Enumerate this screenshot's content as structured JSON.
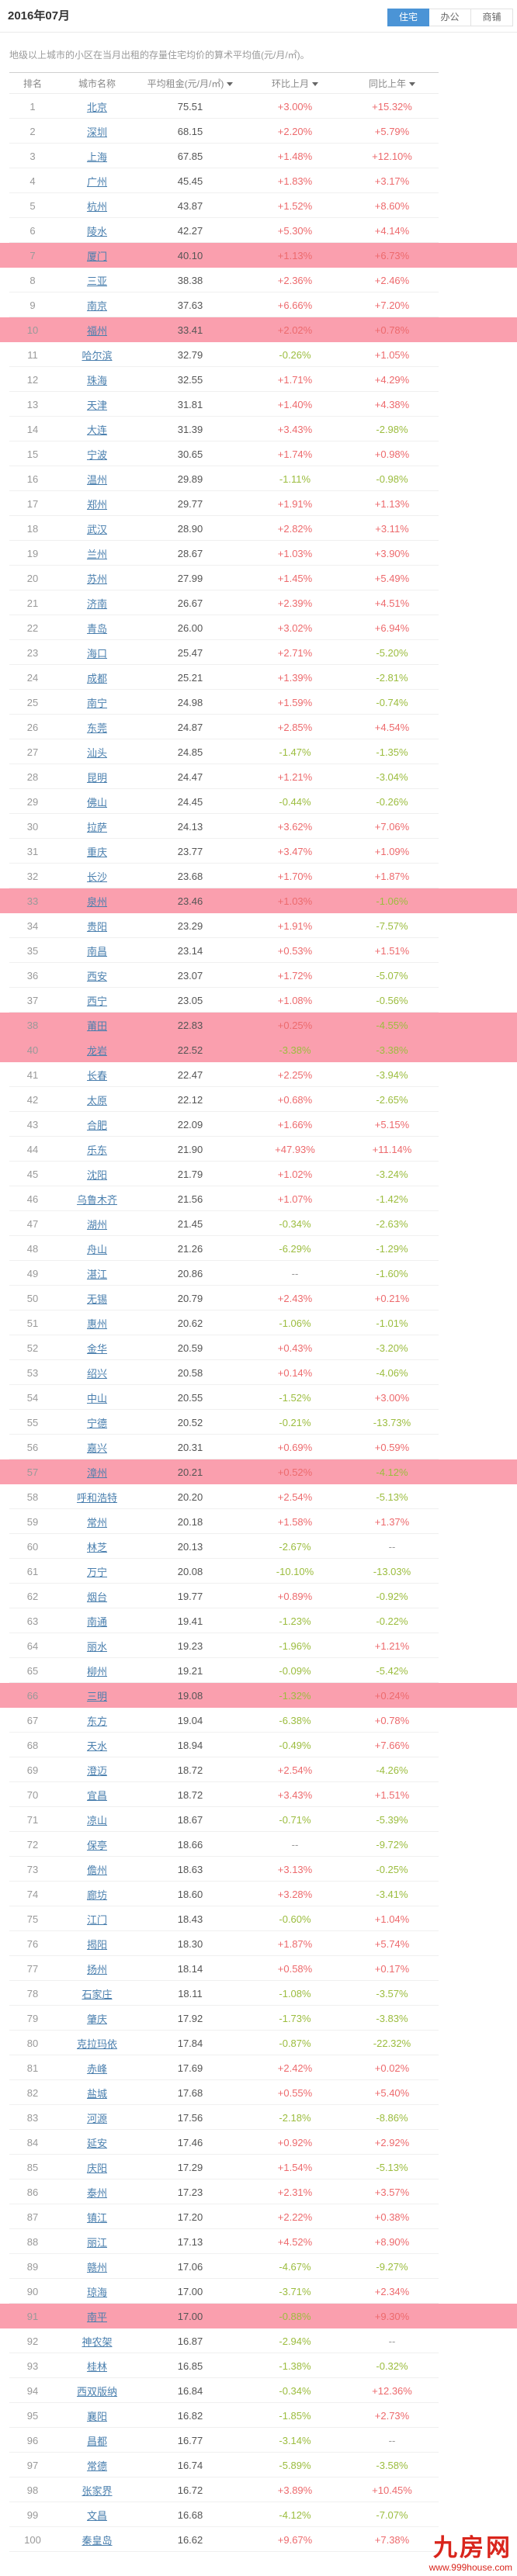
{
  "page": {
    "title": "2016年07月",
    "tabs": [
      {
        "label": "住宅",
        "active": true
      },
      {
        "label": "办公",
        "active": false
      },
      {
        "label": "商铺",
        "active": false
      }
    ],
    "description": "地级以上城市的小区在当月出租的存量住宅均价的算术平均值(元/月/㎡)。",
    "watermark": {
      "logo": "九房网",
      "url": "www.999house.com"
    }
  },
  "colors": {
    "tab_active_bg": "#4b94d6",
    "highlight_row_bg": "#fa9fae",
    "positive_text": "#ed6a6d",
    "negative_text": "#9cbd3f",
    "city_link": "#4a7fae",
    "logo_red": "#d9251c"
  },
  "table": {
    "headers": [
      {
        "label": "排名",
        "sortable": false
      },
      {
        "label": "城市名称",
        "sortable": false
      },
      {
        "label": "平均租金(元/月/㎡)",
        "sortable": true
      },
      {
        "label": "环比上月",
        "sortable": true
      },
      {
        "label": "同比上年",
        "sortable": true
      }
    ],
    "rows": [
      {
        "rank": "1",
        "city": "北京",
        "rent": "75.51",
        "mom": "+3.00%",
        "yoy": "+15.32%"
      },
      {
        "rank": "2",
        "city": "深圳",
        "rent": "68.15",
        "mom": "+2.20%",
        "yoy": "+5.79%"
      },
      {
        "rank": "3",
        "city": "上海",
        "rent": "67.85",
        "mom": "+1.48%",
        "yoy": "+12.10%"
      },
      {
        "rank": "4",
        "city": "广州",
        "rent": "45.45",
        "mom": "+1.83%",
        "yoy": "+3.17%"
      },
      {
        "rank": "5",
        "city": "杭州",
        "rent": "43.87",
        "mom": "+1.52%",
        "yoy": "+8.60%"
      },
      {
        "rank": "6",
        "city": "陵水",
        "rent": "42.27",
        "mom": "+5.30%",
        "yoy": "+4.14%"
      },
      {
        "rank": "7",
        "city": "厦门",
        "rent": "40.10",
        "mom": "+1.13%",
        "yoy": "+6.73%",
        "hl": true
      },
      {
        "rank": "8",
        "city": "三亚",
        "rent": "38.38",
        "mom": "+2.36%",
        "yoy": "+2.46%"
      },
      {
        "rank": "9",
        "city": "南京",
        "rent": "37.63",
        "mom": "+6.66%",
        "yoy": "+7.20%"
      },
      {
        "rank": "10",
        "city": "福州",
        "rent": "33.41",
        "mom": "+2.02%",
        "yoy": "+0.78%",
        "hl": true
      },
      {
        "rank": "11",
        "city": "哈尔滨",
        "rent": "32.79",
        "mom": "-0.26%",
        "yoy": "+1.05%"
      },
      {
        "rank": "12",
        "city": "珠海",
        "rent": "32.55",
        "mom": "+1.71%",
        "yoy": "+4.29%"
      },
      {
        "rank": "13",
        "city": "天津",
        "rent": "31.81",
        "mom": "+1.40%",
        "yoy": "+4.38%"
      },
      {
        "rank": "14",
        "city": "大连",
        "rent": "31.39",
        "mom": "+3.43%",
        "yoy": "-2.98%"
      },
      {
        "rank": "15",
        "city": "宁波",
        "rent": "30.65",
        "mom": "+1.74%",
        "yoy": "+0.98%"
      },
      {
        "rank": "16",
        "city": "温州",
        "rent": "29.89",
        "mom": "-1.11%",
        "yoy": "-0.98%"
      },
      {
        "rank": "17",
        "city": "郑州",
        "rent": "29.77",
        "mom": "+1.91%",
        "yoy": "+1.13%"
      },
      {
        "rank": "18",
        "city": "武汉",
        "rent": "28.90",
        "mom": "+2.82%",
        "yoy": "+3.11%"
      },
      {
        "rank": "19",
        "city": "兰州",
        "rent": "28.67",
        "mom": "+1.03%",
        "yoy": "+3.90%"
      },
      {
        "rank": "20",
        "city": "苏州",
        "rent": "27.99",
        "mom": "+1.45%",
        "yoy": "+5.49%"
      },
      {
        "rank": "21",
        "city": "济南",
        "rent": "26.67",
        "mom": "+2.39%",
        "yoy": "+4.51%"
      },
      {
        "rank": "22",
        "city": "青岛",
        "rent": "26.00",
        "mom": "+3.02%",
        "yoy": "+6.94%"
      },
      {
        "rank": "23",
        "city": "海口",
        "rent": "25.47",
        "mom": "+2.71%",
        "yoy": "-5.20%"
      },
      {
        "rank": "24",
        "city": "成都",
        "rent": "25.21",
        "mom": "+1.39%",
        "yoy": "-2.81%"
      },
      {
        "rank": "25",
        "city": "南宁",
        "rent": "24.98",
        "mom": "+1.59%",
        "yoy": "-0.74%"
      },
      {
        "rank": "26",
        "city": "东莞",
        "rent": "24.87",
        "mom": "+2.85%",
        "yoy": "+4.54%"
      },
      {
        "rank": "27",
        "city": "汕头",
        "rent": "24.85",
        "mom": "-1.47%",
        "yoy": "-1.35%"
      },
      {
        "rank": "28",
        "city": "昆明",
        "rent": "24.47",
        "mom": "+1.21%",
        "yoy": "-3.04%"
      },
      {
        "rank": "29",
        "city": "佛山",
        "rent": "24.45",
        "mom": "-0.44%",
        "yoy": "-0.26%"
      },
      {
        "rank": "30",
        "city": "拉萨",
        "rent": "24.13",
        "mom": "+3.62%",
        "yoy": "+7.06%"
      },
      {
        "rank": "31",
        "city": "重庆",
        "rent": "23.77",
        "mom": "+3.47%",
        "yoy": "+1.09%"
      },
      {
        "rank": "32",
        "city": "长沙",
        "rent": "23.68",
        "mom": "+1.70%",
        "yoy": "+1.87%"
      },
      {
        "rank": "33",
        "city": "泉州",
        "rent": "23.46",
        "mom": "+1.03%",
        "yoy": "-1.06%",
        "hl": true
      },
      {
        "rank": "34",
        "city": "贵阳",
        "rent": "23.29",
        "mom": "+1.91%",
        "yoy": "-7.57%"
      },
      {
        "rank": "35",
        "city": "南昌",
        "rent": "23.14",
        "mom": "+0.53%",
        "yoy": "+1.51%"
      },
      {
        "rank": "36",
        "city": "西安",
        "rent": "23.07",
        "mom": "+1.72%",
        "yoy": "-5.07%"
      },
      {
        "rank": "37",
        "city": "西宁",
        "rent": "23.05",
        "mom": "+1.08%",
        "yoy": "-0.56%"
      },
      {
        "rank": "38",
        "city": "莆田",
        "rent": "22.83",
        "mom": "+0.25%",
        "yoy": "-4.55%",
        "hl": true
      },
      {
        "rank": "40",
        "city": "龙岩",
        "rent": "22.52",
        "mom": "-3.38%",
        "yoy": "-3.38%",
        "hl": true
      },
      {
        "rank": "41",
        "city": "长春",
        "rent": "22.47",
        "mom": "+2.25%",
        "yoy": "-3.94%"
      },
      {
        "rank": "42",
        "city": "太原",
        "rent": "22.12",
        "mom": "+0.68%",
        "yoy": "-2.65%"
      },
      {
        "rank": "43",
        "city": "合肥",
        "rent": "22.09",
        "mom": "+1.66%",
        "yoy": "+5.15%"
      },
      {
        "rank": "44",
        "city": "乐东",
        "rent": "21.90",
        "mom": "+47.93%",
        "yoy": "+11.14%"
      },
      {
        "rank": "45",
        "city": "沈阳",
        "rent": "21.79",
        "mom": "+1.02%",
        "yoy": "-3.24%"
      },
      {
        "rank": "46",
        "city": "乌鲁木齐",
        "rent": "21.56",
        "mom": "+1.07%",
        "yoy": "-1.42%"
      },
      {
        "rank": "47",
        "city": "湖州",
        "rent": "21.45",
        "mom": "-0.34%",
        "yoy": "-2.63%"
      },
      {
        "rank": "48",
        "city": "舟山",
        "rent": "21.26",
        "mom": "-6.29%",
        "yoy": "-1.29%"
      },
      {
        "rank": "49",
        "city": "湛江",
        "rent": "20.86",
        "mom": "--",
        "yoy": "-1.60%"
      },
      {
        "rank": "50",
        "city": "无锡",
        "rent": "20.79",
        "mom": "+2.43%",
        "yoy": "+0.21%"
      },
      {
        "rank": "51",
        "city": "惠州",
        "rent": "20.62",
        "mom": "-1.06%",
        "yoy": "-1.01%"
      },
      {
        "rank": "52",
        "city": "金华",
        "rent": "20.59",
        "mom": "+0.43%",
        "yoy": "-3.20%"
      },
      {
        "rank": "53",
        "city": "绍兴",
        "rent": "20.58",
        "mom": "+0.14%",
        "yoy": "-4.06%"
      },
      {
        "rank": "54",
        "city": "中山",
        "rent": "20.55",
        "mom": "-1.52%",
        "yoy": "+3.00%"
      },
      {
        "rank": "55",
        "city": "宁德",
        "rent": "20.52",
        "mom": "-0.21%",
        "yoy": "-13.73%"
      },
      {
        "rank": "56",
        "city": "嘉兴",
        "rent": "20.31",
        "mom": "+0.69%",
        "yoy": "+0.59%"
      },
      {
        "rank": "57",
        "city": "漳州",
        "rent": "20.21",
        "mom": "+0.52%",
        "yoy": "-4.12%",
        "hl": true
      },
      {
        "rank": "58",
        "city": "呼和浩特",
        "rent": "20.20",
        "mom": "+2.54%",
        "yoy": "-5.13%"
      },
      {
        "rank": "59",
        "city": "常州",
        "rent": "20.18",
        "mom": "+1.58%",
        "yoy": "+1.37%"
      },
      {
        "rank": "60",
        "city": "林芝",
        "rent": "20.13",
        "mom": "-2.67%",
        "yoy": "--"
      },
      {
        "rank": "61",
        "city": "万宁",
        "rent": "20.08",
        "mom": "-10.10%",
        "yoy": "-13.03%"
      },
      {
        "rank": "62",
        "city": "烟台",
        "rent": "19.77",
        "mom": "+0.89%",
        "yoy": "-0.92%"
      },
      {
        "rank": "63",
        "city": "南通",
        "rent": "19.41",
        "mom": "-1.23%",
        "yoy": "-0.22%"
      },
      {
        "rank": "64",
        "city": "丽水",
        "rent": "19.23",
        "mom": "-1.96%",
        "yoy": "+1.21%"
      },
      {
        "rank": "65",
        "city": "柳州",
        "rent": "19.21",
        "mom": "-0.09%",
        "yoy": "-5.42%"
      },
      {
        "rank": "66",
        "city": "三明",
        "rent": "19.08",
        "mom": "-1.32%",
        "yoy": "+0.24%",
        "hl": true
      },
      {
        "rank": "67",
        "city": "东方",
        "rent": "19.04",
        "mom": "-6.38%",
        "yoy": "+0.78%"
      },
      {
        "rank": "68",
        "city": "天水",
        "rent": "18.94",
        "mom": "-0.49%",
        "yoy": "+7.66%"
      },
      {
        "rank": "69",
        "city": "澄迈",
        "rent": "18.72",
        "mom": "+2.54%",
        "yoy": "-4.26%"
      },
      {
        "rank": "70",
        "city": "宜昌",
        "rent": "18.72",
        "mom": "+3.43%",
        "yoy": "+1.51%"
      },
      {
        "rank": "71",
        "city": "凉山",
        "rent": "18.67",
        "mom": "-0.71%",
        "yoy": "-5.39%"
      },
      {
        "rank": "72",
        "city": "保亭",
        "rent": "18.66",
        "mom": "--",
        "yoy": "-9.72%"
      },
      {
        "rank": "73",
        "city": "儋州",
        "rent": "18.63",
        "mom": "+3.13%",
        "yoy": "-0.25%"
      },
      {
        "rank": "74",
        "city": "廊坊",
        "rent": "18.60",
        "mom": "+3.28%",
        "yoy": "-3.41%"
      },
      {
        "rank": "75",
        "city": "江门",
        "rent": "18.43",
        "mom": "-0.60%",
        "yoy": "+1.04%"
      },
      {
        "rank": "76",
        "city": "揭阳",
        "rent": "18.30",
        "mom": "+1.87%",
        "yoy": "+5.74%"
      },
      {
        "rank": "77",
        "city": "扬州",
        "rent": "18.14",
        "mom": "+0.58%",
        "yoy": "+0.17%"
      },
      {
        "rank": "78",
        "city": "石家庄",
        "rent": "18.11",
        "mom": "-1.08%",
        "yoy": "-3.57%"
      },
      {
        "rank": "79",
        "city": "肇庆",
        "rent": "17.92",
        "mom": "-1.73%",
        "yoy": "-3.83%"
      },
      {
        "rank": "80",
        "city": "克拉玛依",
        "rent": "17.84",
        "mom": "-0.87%",
        "yoy": "-22.32%"
      },
      {
        "rank": "81",
        "city": "赤峰",
        "rent": "17.69",
        "mom": "+2.42%",
        "yoy": "+0.02%"
      },
      {
        "rank": "82",
        "city": "盐城",
        "rent": "17.68",
        "mom": "+0.55%",
        "yoy": "+5.40%"
      },
      {
        "rank": "83",
        "city": "河源",
        "rent": "17.56",
        "mom": "-2.18%",
        "yoy": "-8.86%"
      },
      {
        "rank": "84",
        "city": "延安",
        "rent": "17.46",
        "mom": "+0.92%",
        "yoy": "+2.92%"
      },
      {
        "rank": "85",
        "city": "庆阳",
        "rent": "17.29",
        "mom": "+1.54%",
        "yoy": "-5.13%"
      },
      {
        "rank": "86",
        "city": "泰州",
        "rent": "17.23",
        "mom": "+2.31%",
        "yoy": "+3.57%"
      },
      {
        "rank": "87",
        "city": "镇江",
        "rent": "17.20",
        "mom": "+2.22%",
        "yoy": "+0.38%"
      },
      {
        "rank": "88",
        "city": "丽江",
        "rent": "17.13",
        "mom": "+4.52%",
        "yoy": "+8.90%"
      },
      {
        "rank": "89",
        "city": "赣州",
        "rent": "17.06",
        "mom": "-4.67%",
        "yoy": "-9.27%"
      },
      {
        "rank": "90",
        "city": "琼海",
        "rent": "17.00",
        "mom": "-3.71%",
        "yoy": "+2.34%"
      },
      {
        "rank": "91",
        "city": "南平",
        "rent": "17.00",
        "mom": "-0.88%",
        "yoy": "+9.30%",
        "hl": true
      },
      {
        "rank": "92",
        "city": "神农架",
        "rent": "16.87",
        "mom": "-2.94%",
        "yoy": "--"
      },
      {
        "rank": "93",
        "city": "桂林",
        "rent": "16.85",
        "mom": "-1.38%",
        "yoy": "-0.32%"
      },
      {
        "rank": "94",
        "city": "西双版纳",
        "rent": "16.84",
        "mom": "-0.34%",
        "yoy": "+12.36%"
      },
      {
        "rank": "95",
        "city": "襄阳",
        "rent": "16.82",
        "mom": "-1.85%",
        "yoy": "+2.73%"
      },
      {
        "rank": "96",
        "city": "昌都",
        "rent": "16.77",
        "mom": "-3.14%",
        "yoy": "--"
      },
      {
        "rank": "97",
        "city": "常德",
        "rent": "16.74",
        "mom": "-5.89%",
        "yoy": "-3.58%"
      },
      {
        "rank": "98",
        "city": "张家界",
        "rent": "16.72",
        "mom": "+3.89%",
        "yoy": "+10.45%"
      },
      {
        "rank": "99",
        "city": "文昌",
        "rent": "16.68",
        "mom": "-4.12%",
        "yoy": "-7.07%"
      },
      {
        "rank": "100",
        "city": "秦皇岛",
        "rent": "16.62",
        "mom": "+9.67%",
        "yoy": "+7.38%"
      }
    ]
  }
}
